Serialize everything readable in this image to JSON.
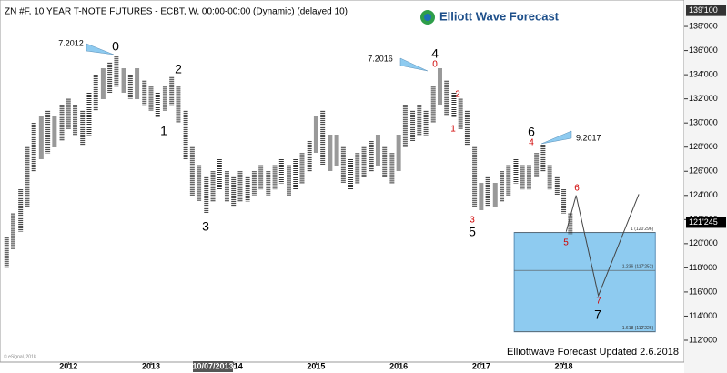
{
  "chart_data": {
    "type": "ohlc",
    "title": "ZN #F, 10 YEAR T-NOTE FUTURES - ECBT, W, 00:00-00:00 (Dynamic) (delayed 10)",
    "brand": "Elliott Wave Forecast",
    "footer": "Elliottwave Forecast Updated 2.6.2018",
    "copyright": "© eSignal, 2018",
    "cursor_label": "10/07/2013",
    "xlim": [
      2011.17,
      2019.46
    ],
    "xticks": [
      2012,
      2013,
      2014,
      2015,
      2016,
      2017,
      2018
    ],
    "ylim": [
      110.19,
      140.19
    ],
    "yticks": [
      {
        "value": 112,
        "label": "112'000"
      },
      {
        "value": 114,
        "label": "114'000"
      },
      {
        "value": 116,
        "label": "116'000"
      },
      {
        "value": 118,
        "label": "118'000"
      },
      {
        "value": 120,
        "label": "120'000"
      },
      {
        "value": 122,
        "label": "122'000"
      },
      {
        "value": 124,
        "label": "124'000"
      },
      {
        "value": 126,
        "label": "126'000"
      },
      {
        "value": 128,
        "label": "128'000"
      },
      {
        "value": 130,
        "label": "130'000"
      },
      {
        "value": 132,
        "label": "132'000"
      },
      {
        "value": 134,
        "label": "134'000"
      },
      {
        "value": 136,
        "label": "136'000"
      },
      {
        "value": 138,
        "label": "138'000"
      }
    ],
    "top_price": {
      "value": 139.3125,
      "label": "139'100"
    },
    "last_price": {
      "value": 121.765625,
      "label": "121'245"
    },
    "series": [
      {
        "name": "ZN #F",
        "color": "#333333",
        "x": [
          2011.25,
          2011.33,
          2011.42,
          2011.5,
          2011.58,
          2011.67,
          2011.75,
          2011.83,
          2011.92,
          2012,
          2012.08,
          2012.17,
          2012.25,
          2012.33,
          2012.42,
          2012.5,
          2012.58,
          2012.67,
          2012.75,
          2012.83,
          2012.92,
          2013,
          2013.08,
          2013.17,
          2013.25,
          2013.33,
          2013.42,
          2013.5,
          2013.58,
          2013.67,
          2013.75,
          2013.83,
          2013.92,
          2014,
          2014.08,
          2014.17,
          2014.25,
          2014.33,
          2014.42,
          2014.5,
          2014.58,
          2014.67,
          2014.75,
          2014.83,
          2014.92,
          2015,
          2015.08,
          2015.17,
          2015.25,
          2015.33,
          2015.42,
          2015.5,
          2015.58,
          2015.67,
          2015.75,
          2015.83,
          2015.92,
          2016,
          2016.08,
          2016.17,
          2016.25,
          2016.33,
          2016.42,
          2016.5,
          2016.58,
          2016.67,
          2016.75,
          2016.83,
          2016.92,
          2017,
          2017.08,
          2017.17,
          2017.25,
          2017.33,
          2017.42,
          2017.5,
          2017.58,
          2017.67,
          2017.75,
          2017.83,
          2017.92,
          2018,
          2018.08
        ],
        "high": [
          120.5,
          122.5,
          124.5,
          128,
          130,
          130.5,
          131,
          130.5,
          131.5,
          132,
          131.5,
          131,
          132.5,
          134,
          134.5,
          135,
          135.5,
          134.5,
          134,
          134.5,
          133.5,
          133,
          132.5,
          133,
          133.8,
          133,
          131,
          128,
          126.5,
          125.5,
          126,
          127,
          126,
          125.5,
          126,
          125.5,
          126,
          126.5,
          126,
          126.5,
          127,
          126.5,
          127,
          127.5,
          128.5,
          130.5,
          131,
          129,
          129,
          128,
          127,
          127.5,
          128,
          128.5,
          129,
          128,
          127.5,
          129,
          131.5,
          131,
          131.5,
          131,
          133,
          134.5,
          133.5,
          132.5,
          132,
          131,
          128,
          125,
          125.5,
          125,
          126,
          126.5,
          127,
          126.5,
          126.5,
          127.5,
          128.2,
          126.5,
          125.5,
          124.5,
          122.5
        ],
        "low": [
          118,
          119.5,
          121,
          123,
          126,
          127,
          127.5,
          128,
          128.5,
          129.5,
          129,
          128,
          129,
          131,
          132,
          132.5,
          133,
          132.5,
          132,
          132,
          131.5,
          131,
          130.5,
          131,
          131.5,
          130,
          127,
          124,
          123.5,
          122.5,
          123.5,
          124.5,
          123.5,
          123,
          123.5,
          123.5,
          124,
          124.5,
          124,
          124.5,
          125,
          124,
          124.5,
          125,
          126,
          127.5,
          126.5,
          126,
          126.5,
          125,
          124.5,
          125,
          125.5,
          126,
          126.5,
          125.5,
          125,
          126,
          128,
          128.5,
          129,
          129,
          130,
          131.5,
          130.5,
          130.5,
          129.5,
          128,
          123,
          122.8,
          123,
          123,
          123.5,
          124,
          125,
          124.5,
          124.5,
          125.5,
          126,
          124.5,
          124,
          122.5,
          120.8
        ]
      }
    ],
    "projection": {
      "x": [
        2018.03,
        2018.15,
        2018.42,
        2018.91
      ],
      "values": [
        121,
        124,
        115.7,
        124.1
      ],
      "color": "#444444"
    },
    "fib_box": {
      "xlim": [
        2017.4,
        2019.11
      ],
      "color": "#8ecbf0",
      "levels": [
        {
          "value": 120.925,
          "label": "1 (120'296)"
        },
        {
          "value": 117.79,
          "label": "1.236 (117'252)"
        },
        {
          "value": 112.7,
          "label": "1.618 (112'226)"
        }
      ]
    },
    "wave_labels": [
      {
        "text": "0",
        "color": "#000000"
      },
      {
        "text": "1",
        "color": "#000000"
      },
      {
        "text": "2",
        "color": "#000000"
      },
      {
        "text": "3",
        "color": "#000000"
      },
      {
        "text": "4",
        "color": "#000000"
      },
      {
        "text": "5",
        "color": "#000000"
      },
      {
        "text": "6",
        "color": "#000000"
      },
      {
        "text": "7",
        "color": "#000000"
      },
      {
        "text": "0",
        "color": "#d00000"
      },
      {
        "text": "1",
        "color": "#d00000"
      },
      {
        "text": "2",
        "color": "#d00000"
      },
      {
        "text": "3",
        "color": "#d00000"
      },
      {
        "text": "4",
        "color": "#d00000"
      },
      {
        "text": "5",
        "color": "#d00000"
      },
      {
        "text": "6",
        "color": "#d00000"
      },
      {
        "text": "7",
        "color": "#d00000"
      }
    ],
    "callouts": [
      "7.2012",
      "7.2016",
      "9.2017"
    ]
  }
}
